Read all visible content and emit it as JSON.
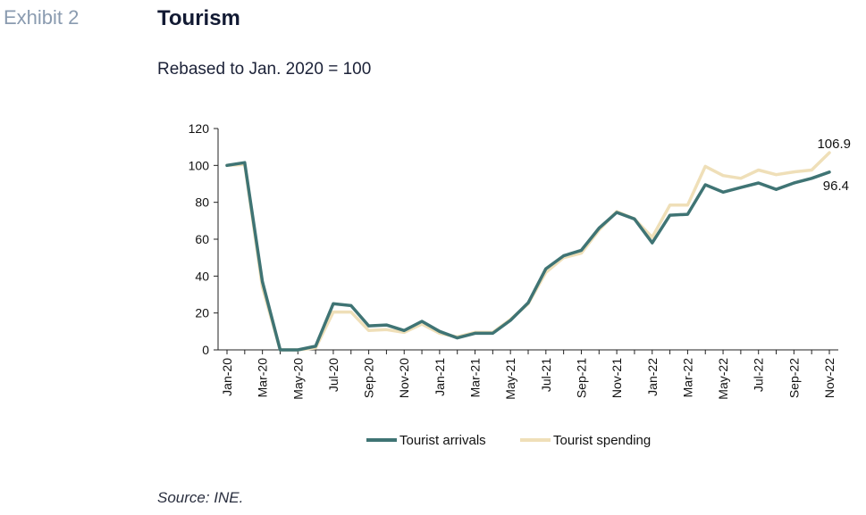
{
  "header": {
    "exhibit": "Exhibit 2",
    "title": "Tourism",
    "subtitle": "Rebased to Jan. 2020 = 100"
  },
  "footer": {
    "source": "Source: INE."
  },
  "chart_data": {
    "type": "line",
    "title": "Tourism",
    "subtitle": "Rebased to Jan. 2020 = 100",
    "xlabel": "",
    "ylabel": "",
    "ylim": [
      0,
      120
    ],
    "yticks": [
      0,
      20,
      40,
      60,
      80,
      100,
      120
    ],
    "grid": false,
    "legend_position": "bottom",
    "x": [
      "Jan-20",
      "Feb-20",
      "Mar-20",
      "Apr-20",
      "May-20",
      "Jun-20",
      "Jul-20",
      "Aug-20",
      "Sep-20",
      "Oct-20",
      "Nov-20",
      "Dec-20",
      "Jan-21",
      "Feb-21",
      "Mar-21",
      "Apr-21",
      "May-21",
      "Jun-21",
      "Jul-21",
      "Aug-21",
      "Sep-21",
      "Oct-21",
      "Nov-21",
      "Dec-21",
      "Jan-22",
      "Feb-22",
      "Mar-22",
      "Apr-22",
      "May-22",
      "Jun-22",
      "Jul-22",
      "Aug-22",
      "Sep-22",
      "Oct-22",
      "Nov-22"
    ],
    "x_tick_labels": [
      "Jan-20",
      "Mar-20",
      "May-20",
      "Jul-20",
      "Sep-20",
      "Nov-20",
      "Jan-21",
      "Mar-21",
      "May-21",
      "Jul-21",
      "Sep-21",
      "Nov-21",
      "Jan-22",
      "Mar-22",
      "May-22",
      "Jul-22",
      "Sep-22",
      "Nov-22"
    ],
    "series": [
      {
        "name": "Tourist arrivals",
        "color": "#3f7474",
        "values": [
          100,
          101.5,
          37,
          0,
          0,
          2,
          25,
          24,
          13,
          13.5,
          10.5,
          15.5,
          10,
          6.5,
          9,
          9,
          16,
          25.5,
          44,
          51,
          54,
          66,
          74.5,
          71,
          58,
          73,
          73.5,
          89.5,
          85.5,
          88,
          90.5,
          87,
          90.5,
          93,
          96.4
        ],
        "end_label": "96.4"
      },
      {
        "name": "Tourist spending",
        "color": "#efdfb8",
        "values": [
          100,
          100.5,
          34,
          0,
          0,
          1,
          20.5,
          20.5,
          10.5,
          11,
          9.5,
          14,
          9,
          7,
          9.5,
          9.5,
          16.5,
          25,
          42,
          50,
          52.5,
          65,
          75,
          71,
          61,
          78.5,
          78.5,
          99.5,
          94.5,
          93,
          97.5,
          95,
          96.5,
          97.5,
          106.9
        ],
        "end_label": "106.9"
      }
    ]
  }
}
